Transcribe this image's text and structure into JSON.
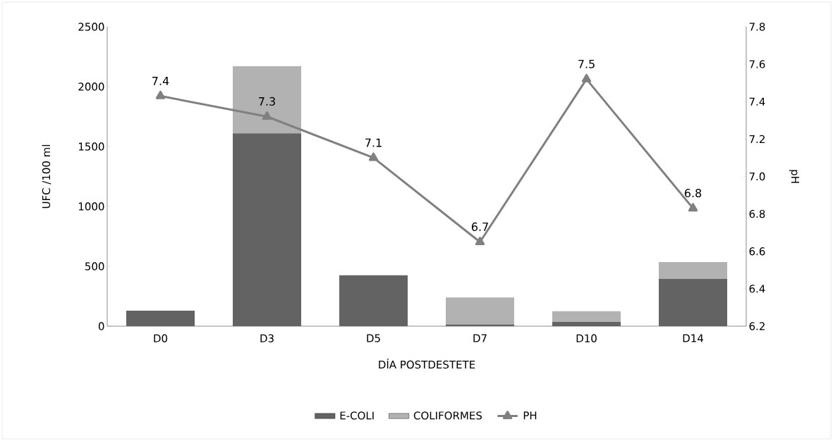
{
  "chart_data": {
    "type": "bar",
    "stacked": true,
    "xlabel": "DÍA POSTDESTETE",
    "ylabel": "UFC /100 ml",
    "y2label": "pH",
    "categories": [
      "D0",
      "D3",
      "D5",
      "D7",
      "D10",
      "D14"
    ],
    "series": [
      {
        "name": "E-COLI",
        "color": "#636363",
        "values": [
          130,
          1610,
          425,
          15,
          35,
          395
        ]
      },
      {
        "name": "COLIFORMES",
        "color": "#b2b2b2",
        "values": [
          0,
          560,
          0,
          225,
          90,
          140
        ]
      },
      {
        "name": "PH",
        "type": "line",
        "axis": "y2",
        "color": "#808080",
        "marker": "triangle",
        "values": [
          7.43,
          7.32,
          7.1,
          6.65,
          7.52,
          6.83
        ],
        "value_labels": [
          "7.4",
          "7.3",
          "7.1",
          "6.7",
          "7.5",
          "6.8"
        ]
      }
    ],
    "ylim": [
      0,
      2500
    ],
    "yticks": [
      0,
      500,
      1000,
      1500,
      2000,
      2500
    ],
    "y2lim": [
      6.2,
      7.8
    ],
    "y2ticks": [
      6.2,
      6.4,
      6.6,
      6.8,
      {
        "value": 7,
        "label": "7.0"
      },
      7.2,
      7.4,
      7.6,
      7.8
    ],
    "legend": "bottom"
  }
}
